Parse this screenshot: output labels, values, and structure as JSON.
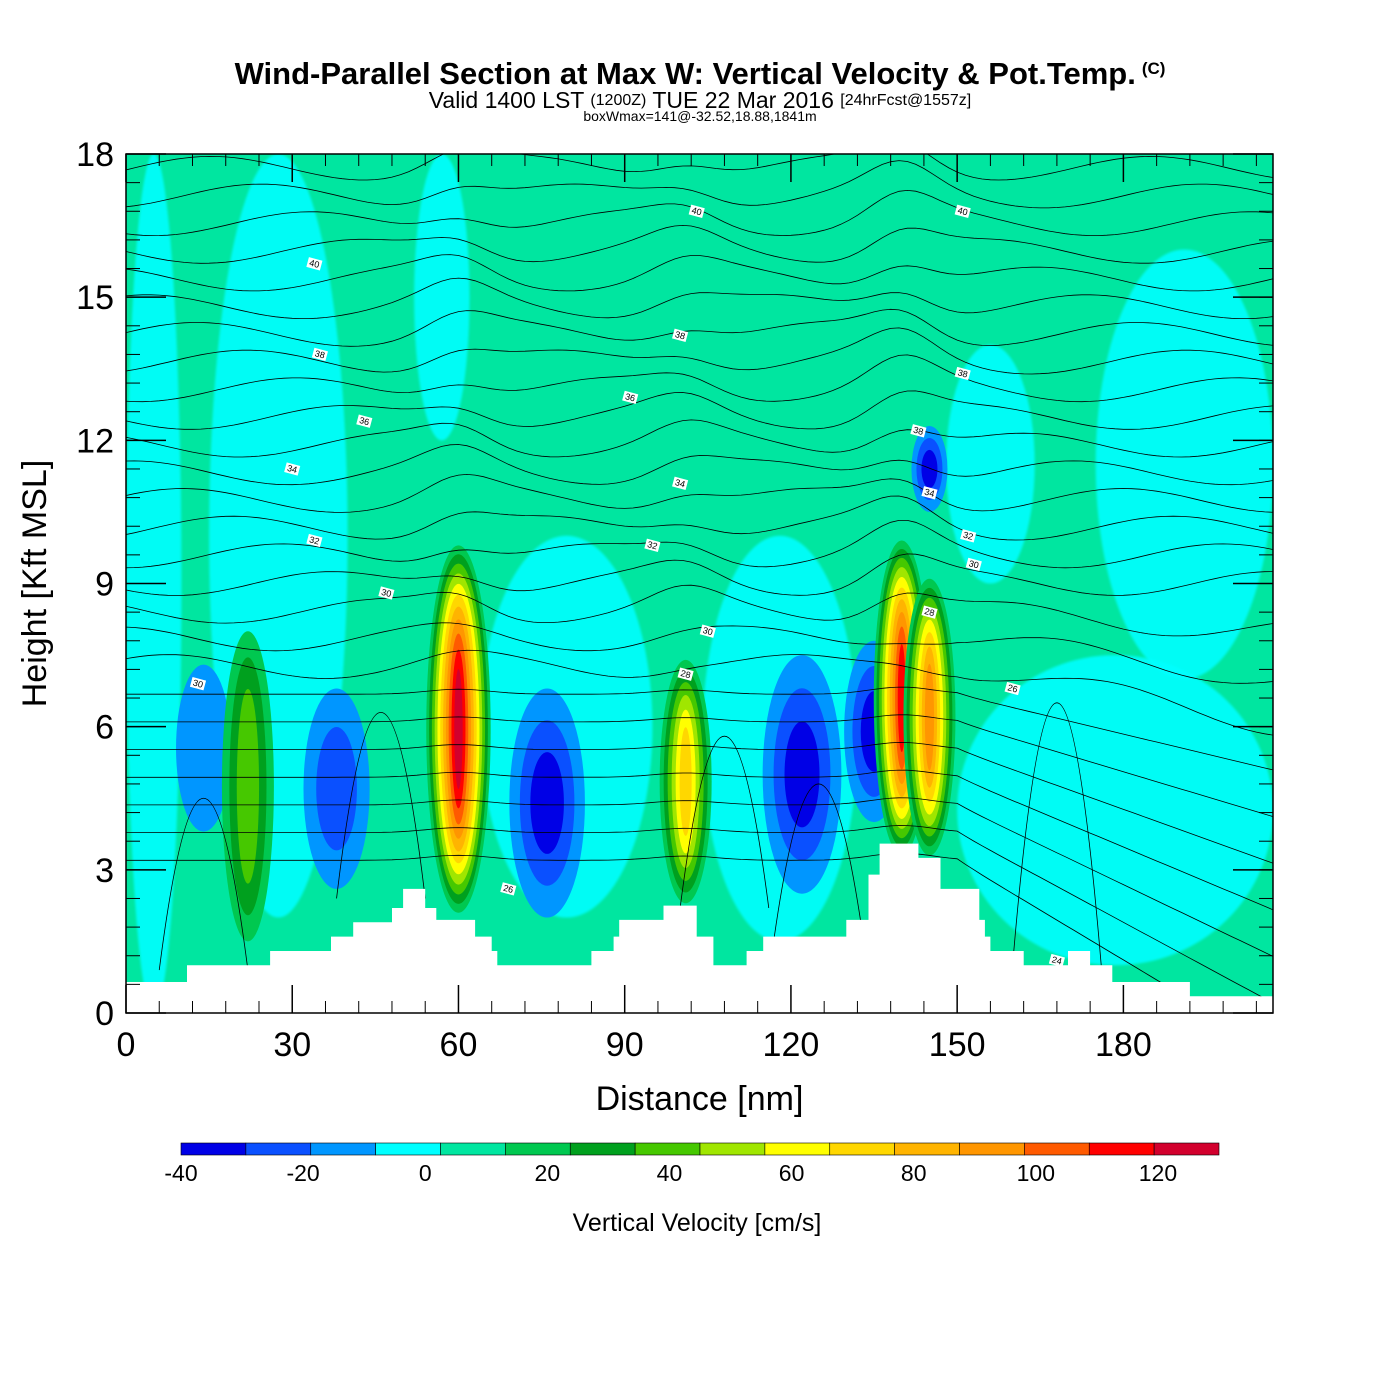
{
  "header": {
    "title": "Wind-Parallel Section at Max W: Vertical Velocity & Pot.Temp.",
    "copyright": "(C)",
    "subtitle_valid": "Valid 1400 LST",
    "subtitle_utc": "(1200Z)",
    "subtitle_date": "TUE 22 Mar 2016",
    "subtitle_forecast": "[24hrFcst@1557z]",
    "box_info": "boxWmax=141@-32.52,18.88,1841m"
  },
  "chart_data": {
    "type": "heatmap",
    "title": "Wind-Parallel Section at Max W: Vertical Velocity & Pot.Temp.",
    "xlabel": "Distance [nm]",
    "ylabel": "Height [Kft MSL]",
    "xlim": [
      0,
      207
    ],
    "ylim": [
      0,
      18
    ],
    "x_ticks": [
      0,
      30,
      60,
      90,
      120,
      150,
      180
    ],
    "y_ticks": [
      0,
      3,
      6,
      9,
      12,
      15,
      18
    ],
    "colorbar": {
      "title": "Vertical Velocity [cm/s]",
      "levels": [
        -40,
        -30,
        -20,
        -10,
        0,
        10,
        20,
        30,
        40,
        50,
        60,
        70,
        80,
        90,
        100,
        110,
        120,
        130
      ],
      "tick_labels": [
        -40,
        -20,
        0,
        20,
        40,
        60,
        80,
        100,
        120
      ],
      "colors": [
        "#0000e6",
        "#0a50ff",
        "#0096ff",
        "#00ffff",
        "#00e6a0",
        "#00c850",
        "#00a01e",
        "#46c800",
        "#a0e600",
        "#ffff00",
        "#ffd700",
        "#ffb400",
        "#ff9600",
        "#ff5a00",
        "#ff0000",
        "#d2002d"
      ]
    },
    "background_color": "#00e6a0",
    "updrafts": [
      {
        "x": 22,
        "y_bottom": 1.5,
        "y_top": 8.0,
        "w_max": 35
      },
      {
        "x": 60,
        "y_bottom": 2.1,
        "y_top": 9.8,
        "w_max": 115
      },
      {
        "x": 101,
        "y_bottom": 2.3,
        "y_top": 7.4,
        "w_max": 62
      },
      {
        "x": 140,
        "y_bottom": 3.3,
        "y_top": 9.9,
        "w_max": 100
      },
      {
        "x": 145,
        "y_bottom": 3.3,
        "y_top": 9.1,
        "w_max": 80
      }
    ],
    "downdrafts": [
      {
        "x": 38,
        "y_bottom": 2.6,
        "y_top": 6.8,
        "w_min": -28
      },
      {
        "x": 76,
        "y_bottom": 2.0,
        "y_top": 6.8,
        "w_min": -40
      },
      {
        "x": 122,
        "y_bottom": 2.5,
        "y_top": 7.5,
        "w_min": -35
      },
      {
        "x": 135,
        "y_bottom": 4.0,
        "y_top": 7.8,
        "w_min": -40
      },
      {
        "x": 145,
        "y_bottom": 10.5,
        "y_top": 12.3,
        "w_min": -32
      },
      {
        "x": 14,
        "y_bottom": 3.8,
        "y_top": 7.3,
        "w_min": -18
      }
    ],
    "terrain": [
      [
        0,
        0.65
      ],
      [
        11,
        0.65
      ],
      [
        11,
        1.0
      ],
      [
        26,
        1.0
      ],
      [
        26,
        1.3
      ],
      [
        37,
        1.3
      ],
      [
        37,
        1.6
      ],
      [
        41,
        1.6
      ],
      [
        41,
        1.9
      ],
      [
        48,
        1.9
      ],
      [
        48,
        2.2
      ],
      [
        50,
        2.2
      ],
      [
        50,
        2.6
      ],
      [
        54,
        2.6
      ],
      [
        54,
        2.2
      ],
      [
        56,
        2.2
      ],
      [
        56,
        1.95
      ],
      [
        63,
        1.95
      ],
      [
        63,
        1.6
      ],
      [
        66,
        1.6
      ],
      [
        66,
        1.3
      ],
      [
        67,
        1.3
      ],
      [
        67,
        1.0
      ],
      [
        84,
        1.0
      ],
      [
        84,
        1.3
      ],
      [
        88,
        1.3
      ],
      [
        88,
        1.6
      ],
      [
        89,
        1.6
      ],
      [
        89,
        1.95
      ],
      [
        97,
        1.95
      ],
      [
        97,
        2.25
      ],
      [
        103,
        2.25
      ],
      [
        103,
        1.6
      ],
      [
        106,
        1.6
      ],
      [
        106,
        1.0
      ],
      [
        112,
        1.0
      ],
      [
        112,
        1.3
      ],
      [
        115,
        1.3
      ],
      [
        115,
        1.6
      ],
      [
        130,
        1.6
      ],
      [
        130,
        1.95
      ],
      [
        134,
        1.95
      ],
      [
        134,
        2.9
      ],
      [
        136,
        2.9
      ],
      [
        136,
        3.55
      ],
      [
        143,
        3.55
      ],
      [
        143,
        3.25
      ],
      [
        147,
        3.25
      ],
      [
        147,
        2.6
      ],
      [
        154,
        2.6
      ],
      [
        154,
        1.95
      ],
      [
        155,
        1.95
      ],
      [
        155,
        1.6
      ],
      [
        156,
        1.6
      ],
      [
        156,
        1.3
      ],
      [
        162,
        1.3
      ],
      [
        162,
        1.0
      ],
      [
        170,
        1.0
      ],
      [
        170,
        1.3
      ],
      [
        174,
        1.3
      ],
      [
        174,
        1.0
      ],
      [
        178,
        1.0
      ],
      [
        178,
        0.65
      ],
      [
        192,
        0.65
      ],
      [
        192,
        0.35
      ],
      [
        207,
        0.35
      ]
    ],
    "theta_contour_labels": [
      {
        "value": "40",
        "x": 34,
        "y": 15.7
      },
      {
        "value": "40",
        "x": 103,
        "y": 16.8
      },
      {
        "value": "40",
        "x": 151,
        "y": 16.8
      },
      {
        "value": "38",
        "x": 35,
        "y": 13.8
      },
      {
        "value": "38",
        "x": 100,
        "y": 14.2
      },
      {
        "value": "38",
        "x": 151,
        "y": 13.4
      },
      {
        "value": "38",
        "x": 143,
        "y": 12.2
      },
      {
        "value": "36",
        "x": 43,
        "y": 12.4
      },
      {
        "value": "36",
        "x": 91,
        "y": 12.9
      },
      {
        "value": "34",
        "x": 30,
        "y": 11.4
      },
      {
        "value": "34",
        "x": 100,
        "y": 11.1
      },
      {
        "value": "34",
        "x": 145,
        "y": 10.9
      },
      {
        "value": "32",
        "x": 34,
        "y": 9.9
      },
      {
        "value": "32",
        "x": 95,
        "y": 9.8
      },
      {
        "value": "32",
        "x": 152,
        "y": 10.0
      },
      {
        "value": "30",
        "x": 47,
        "y": 8.8
      },
      {
        "value": "30",
        "x": 105,
        "y": 8.0
      },
      {
        "value": "30",
        "x": 153,
        "y": 9.4
      },
      {
        "value": "30",
        "x": 13,
        "y": 6.9
      },
      {
        "value": "28",
        "x": 101,
        "y": 7.1
      },
      {
        "value": "28",
        "x": 145,
        "y": 8.4
      },
      {
        "value": "26",
        "x": 69,
        "y": 2.6
      },
      {
        "value": "26",
        "x": 160,
        "y": 6.8
      },
      {
        "value": "24",
        "x": 168,
        "y": 1.1
      }
    ]
  }
}
